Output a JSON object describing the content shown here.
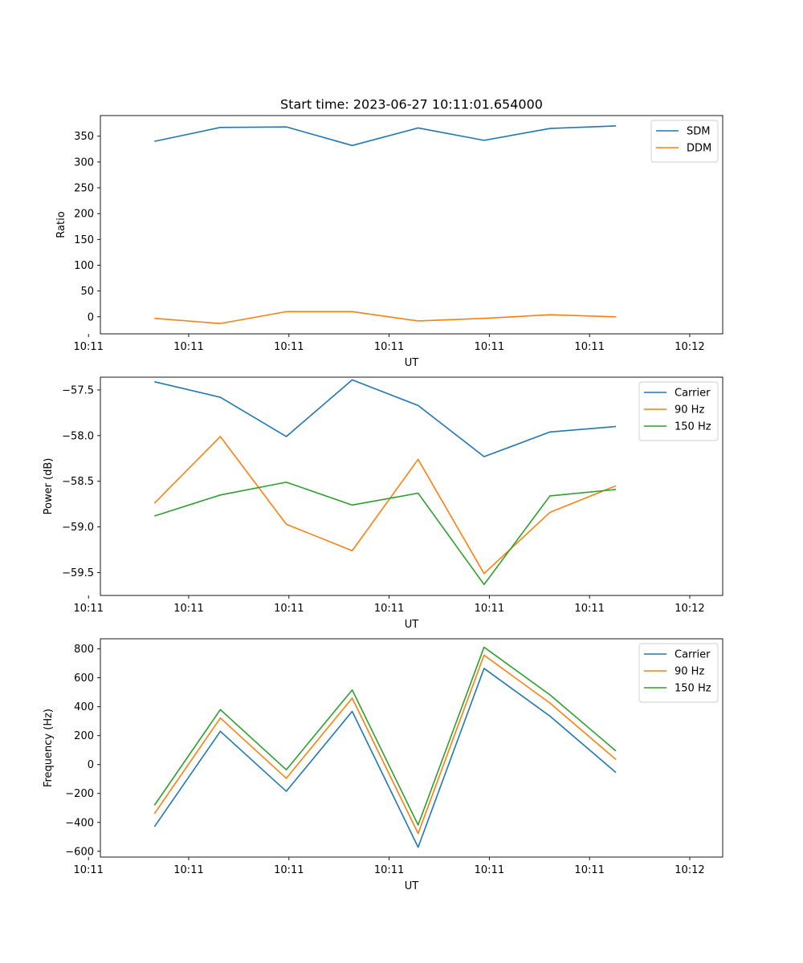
{
  "title": "Start time: 2023-06-27 10:11:01.654000",
  "chart_data": [
    {
      "type": "line",
      "xlabel": "UT",
      "ylabel": "Ratio",
      "x": [
        1,
        2,
        3,
        4,
        5,
        6,
        7,
        8
      ],
      "xlim": [
        0.18,
        9.62
      ],
      "xticks": [
        {
          "v": 0.0,
          "label": "10:11"
        },
        {
          "v": 1.52,
          "label": "10:11"
        },
        {
          "v": 3.04,
          "label": "10:11"
        },
        {
          "v": 4.56,
          "label": "10:11"
        },
        {
          "v": 6.08,
          "label": "10:11"
        },
        {
          "v": 7.6,
          "label": "10:11"
        },
        {
          "v": 9.12,
          "label": "10:12"
        }
      ],
      "ylim": [
        -33,
        390
      ],
      "yticks": [
        0,
        50,
        100,
        150,
        200,
        250,
        300,
        350
      ],
      "legend": "top-right",
      "series": [
        {
          "name": "SDM",
          "color": "#1f77b4",
          "values": [
            340,
            367,
            368,
            332,
            366,
            342,
            365,
            370
          ]
        },
        {
          "name": "DDM",
          "color": "#ff7f0e",
          "values": [
            -3,
            -13,
            10,
            10,
            -8,
            -3,
            4,
            0
          ]
        }
      ]
    },
    {
      "type": "line",
      "xlabel": "UT",
      "ylabel": "Power (dB)",
      "x": [
        1,
        2,
        3,
        4,
        5,
        6,
        7,
        8
      ],
      "xlim": [
        0.18,
        9.62
      ],
      "xticks": [
        {
          "v": 0.0,
          "label": "10:11"
        },
        {
          "v": 1.52,
          "label": "10:11"
        },
        {
          "v": 3.04,
          "label": "10:11"
        },
        {
          "v": 4.56,
          "label": "10:11"
        },
        {
          "v": 6.08,
          "label": "10:11"
        },
        {
          "v": 7.6,
          "label": "10:11"
        },
        {
          "v": 9.12,
          "label": "10:12"
        }
      ],
      "ylim": [
        -59.75,
        -57.36
      ],
      "yticks": [
        {
          "v": -59.5,
          "label": "−59.5"
        },
        {
          "v": -59.0,
          "label": "−59.0"
        },
        {
          "v": -58.5,
          "label": "−58.5"
        },
        {
          "v": -58.0,
          "label": "−58.0"
        },
        {
          "v": -57.5,
          "label": "−57.5"
        }
      ],
      "legend": "top-right",
      "series": [
        {
          "name": "Carrier",
          "color": "#1f77b4",
          "values": [
            -57.41,
            -57.58,
            -58.01,
            -57.39,
            -57.67,
            -58.23,
            -57.96,
            -57.9
          ]
        },
        {
          "name": "90 Hz",
          "color": "#ff7f0e",
          "values": [
            -58.74,
            -58.01,
            -58.97,
            -59.26,
            -58.26,
            -59.51,
            -58.84,
            -58.55
          ]
        },
        {
          "name": "150 Hz",
          "color": "#2ca02c",
          "values": [
            -58.88,
            -58.65,
            -58.51,
            -58.76,
            -58.63,
            -59.63,
            -58.66,
            -58.59
          ]
        }
      ]
    },
    {
      "type": "line",
      "xlabel": "UT",
      "ylabel": "Frequency (Hz)",
      "x": [
        1,
        2,
        3,
        4,
        5,
        6,
        7,
        8
      ],
      "xlim": [
        0.18,
        9.62
      ],
      "xticks": [
        {
          "v": 0.0,
          "label": "10:11"
        },
        {
          "v": 1.52,
          "label": "10:11"
        },
        {
          "v": 3.04,
          "label": "10:11"
        },
        {
          "v": 4.56,
          "label": "10:11"
        },
        {
          "v": 6.08,
          "label": "10:11"
        },
        {
          "v": 7.6,
          "label": "10:11"
        },
        {
          "v": 9.12,
          "label": "10:12"
        }
      ],
      "ylim": [
        -640,
        870
      ],
      "yticks": [
        {
          "v": -600,
          "label": "−600"
        },
        {
          "v": -400,
          "label": "−400"
        },
        {
          "v": -200,
          "label": "−200"
        },
        {
          "v": 0,
          "label": "0"
        },
        {
          "v": 200,
          "label": "200"
        },
        {
          "v": 400,
          "label": "400"
        },
        {
          "v": 600,
          "label": "600"
        },
        {
          "v": 800,
          "label": "800"
        }
      ],
      "legend": "top-right",
      "series": [
        {
          "name": "Carrier",
          "color": "#1f77b4",
          "values": [
            -430,
            230,
            -185,
            368,
            -572,
            665,
            335,
            -55
          ]
        },
        {
          "name": "90 Hz",
          "color": "#ff7f0e",
          "values": [
            -340,
            322,
            -95,
            460,
            -477,
            757,
            425,
            35
          ]
        },
        {
          "name": "150 Hz",
          "color": "#2ca02c",
          "values": [
            -282,
            380,
            -36,
            516,
            -418,
            812,
            482,
            94
          ]
        }
      ]
    }
  ]
}
